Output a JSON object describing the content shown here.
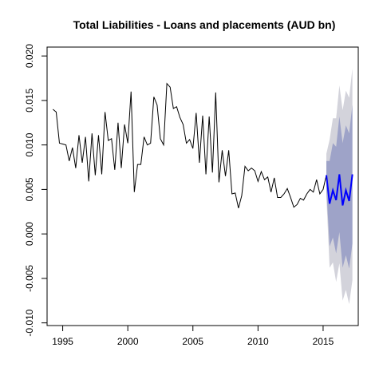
{
  "chart_data": {
    "type": "line",
    "title": "Total Liabilities - Loans and placements (AUD bn)",
    "xlabel": "",
    "ylabel": "",
    "xlim": [
      1993.8,
      2017.7
    ],
    "ylim": [
      -0.0103,
      0.021
    ],
    "x_ticks": [
      1995,
      2000,
      2005,
      2010,
      2015
    ],
    "x_tick_labels": [
      "1995",
      "2000",
      "2005",
      "2010",
      "2015"
    ],
    "y_ticks": [
      -0.01,
      -0.005,
      0.0,
      0.005,
      0.01,
      0.015,
      0.02
    ],
    "y_tick_labels": [
      "-0.010",
      "-0.005",
      "0.000",
      "0.005",
      "0.010",
      "0.015",
      "0.020"
    ],
    "grid": false,
    "colors": {
      "history": "#000000",
      "forecast": "#0000ff",
      "band95": "#d3d3db",
      "band80": "#9ea3c8"
    },
    "series": [
      {
        "role": "history",
        "x": [
          1994.25,
          1994.5,
          1994.75,
          1995.0,
          1995.25,
          1995.5,
          1995.75,
          1996.0,
          1996.25,
          1996.5,
          1996.75,
          1997.0,
          1997.25,
          1997.5,
          1997.75,
          1998.0,
          1998.25,
          1998.5,
          1998.75,
          1999.0,
          1999.25,
          1999.5,
          1999.75,
          2000.0,
          2000.25,
          2000.5,
          2000.75,
          2001.0,
          2001.25,
          2001.5,
          2001.75,
          2002.0,
          2002.25,
          2002.5,
          2002.75,
          2003.0,
          2003.25,
          2003.5,
          2003.75,
          2004.0,
          2004.25,
          2004.5,
          2004.75,
          2005.0,
          2005.25,
          2005.5,
          2005.75,
          2006.0,
          2006.25,
          2006.5,
          2006.75,
          2007.0,
          2007.25,
          2007.5,
          2007.75,
          2008.0,
          2008.25,
          2008.5,
          2008.75,
          2009.0,
          2009.25,
          2009.5,
          2009.75,
          2010.0,
          2010.25,
          2010.5,
          2010.75,
          2011.0,
          2011.25,
          2011.5,
          2011.75,
          2012.0,
          2012.25,
          2012.5,
          2012.75,
          2013.0,
          2013.25,
          2013.5,
          2013.75,
          2014.0,
          2014.25,
          2014.5,
          2014.75,
          2015.0,
          2015.25
        ],
        "y": [
          0.014,
          0.0137,
          0.0102,
          0.0101,
          0.01,
          0.0082,
          0.0097,
          0.0074,
          0.0111,
          0.008,
          0.0109,
          0.0059,
          0.0113,
          0.0066,
          0.0111,
          0.0067,
          0.0137,
          0.0105,
          0.0107,
          0.0072,
          0.0125,
          0.0074,
          0.0123,
          0.0102,
          0.016,
          0.0047,
          0.0078,
          0.0078,
          0.0109,
          0.01,
          0.0102,
          0.0154,
          0.0145,
          0.0107,
          0.01,
          0.0169,
          0.0165,
          0.0141,
          0.0143,
          0.0131,
          0.0123,
          0.0102,
          0.0106,
          0.0096,
          0.0136,
          0.008,
          0.0133,
          0.0067,
          0.0132,
          0.0069,
          0.0159,
          0.0058,
          0.0094,
          0.0065,
          0.0094,
          0.0045,
          0.0046,
          0.0029,
          0.0043,
          0.0076,
          0.0071,
          0.0074,
          0.0071,
          0.0059,
          0.007,
          0.0061,
          0.0064,
          0.0047,
          0.0063,
          0.0041,
          0.0041,
          0.0045,
          0.0051,
          0.0041,
          0.003,
          0.0033,
          0.004,
          0.0038,
          0.0045,
          0.005,
          0.0047,
          0.0061,
          0.0045,
          0.005,
          0.0066
        ]
      },
      {
        "role": "forecast",
        "x": [
          2015.25,
          2015.5,
          2015.75,
          2016.0,
          2016.25,
          2016.5,
          2016.75,
          2017.0,
          2017.25
        ],
        "y": [
          0.0066,
          0.0034,
          0.0049,
          0.0038,
          0.0067,
          0.0032,
          0.0049,
          0.0037,
          0.0067
        ],
        "upper80": [
          0.0082,
          0.0082,
          0.0102,
          0.0098,
          0.0132,
          0.0102,
          0.0122,
          0.0113,
          0.0145
        ],
        "lower80": [
          0.005,
          -0.0014,
          -0.0004,
          -0.0022,
          0.0002,
          -0.0038,
          -0.0024,
          -0.0039,
          -0.0011
        ],
        "upper95": [
          0.009,
          0.0106,
          0.013,
          0.013,
          0.0167,
          0.0139,
          0.0161,
          0.0153,
          0.0186
        ],
        "lower95": [
          0.0042,
          -0.0038,
          -0.0032,
          -0.0054,
          -0.0033,
          -0.0075,
          -0.0063,
          -0.0079,
          -0.0052
        ]
      }
    ]
  }
}
